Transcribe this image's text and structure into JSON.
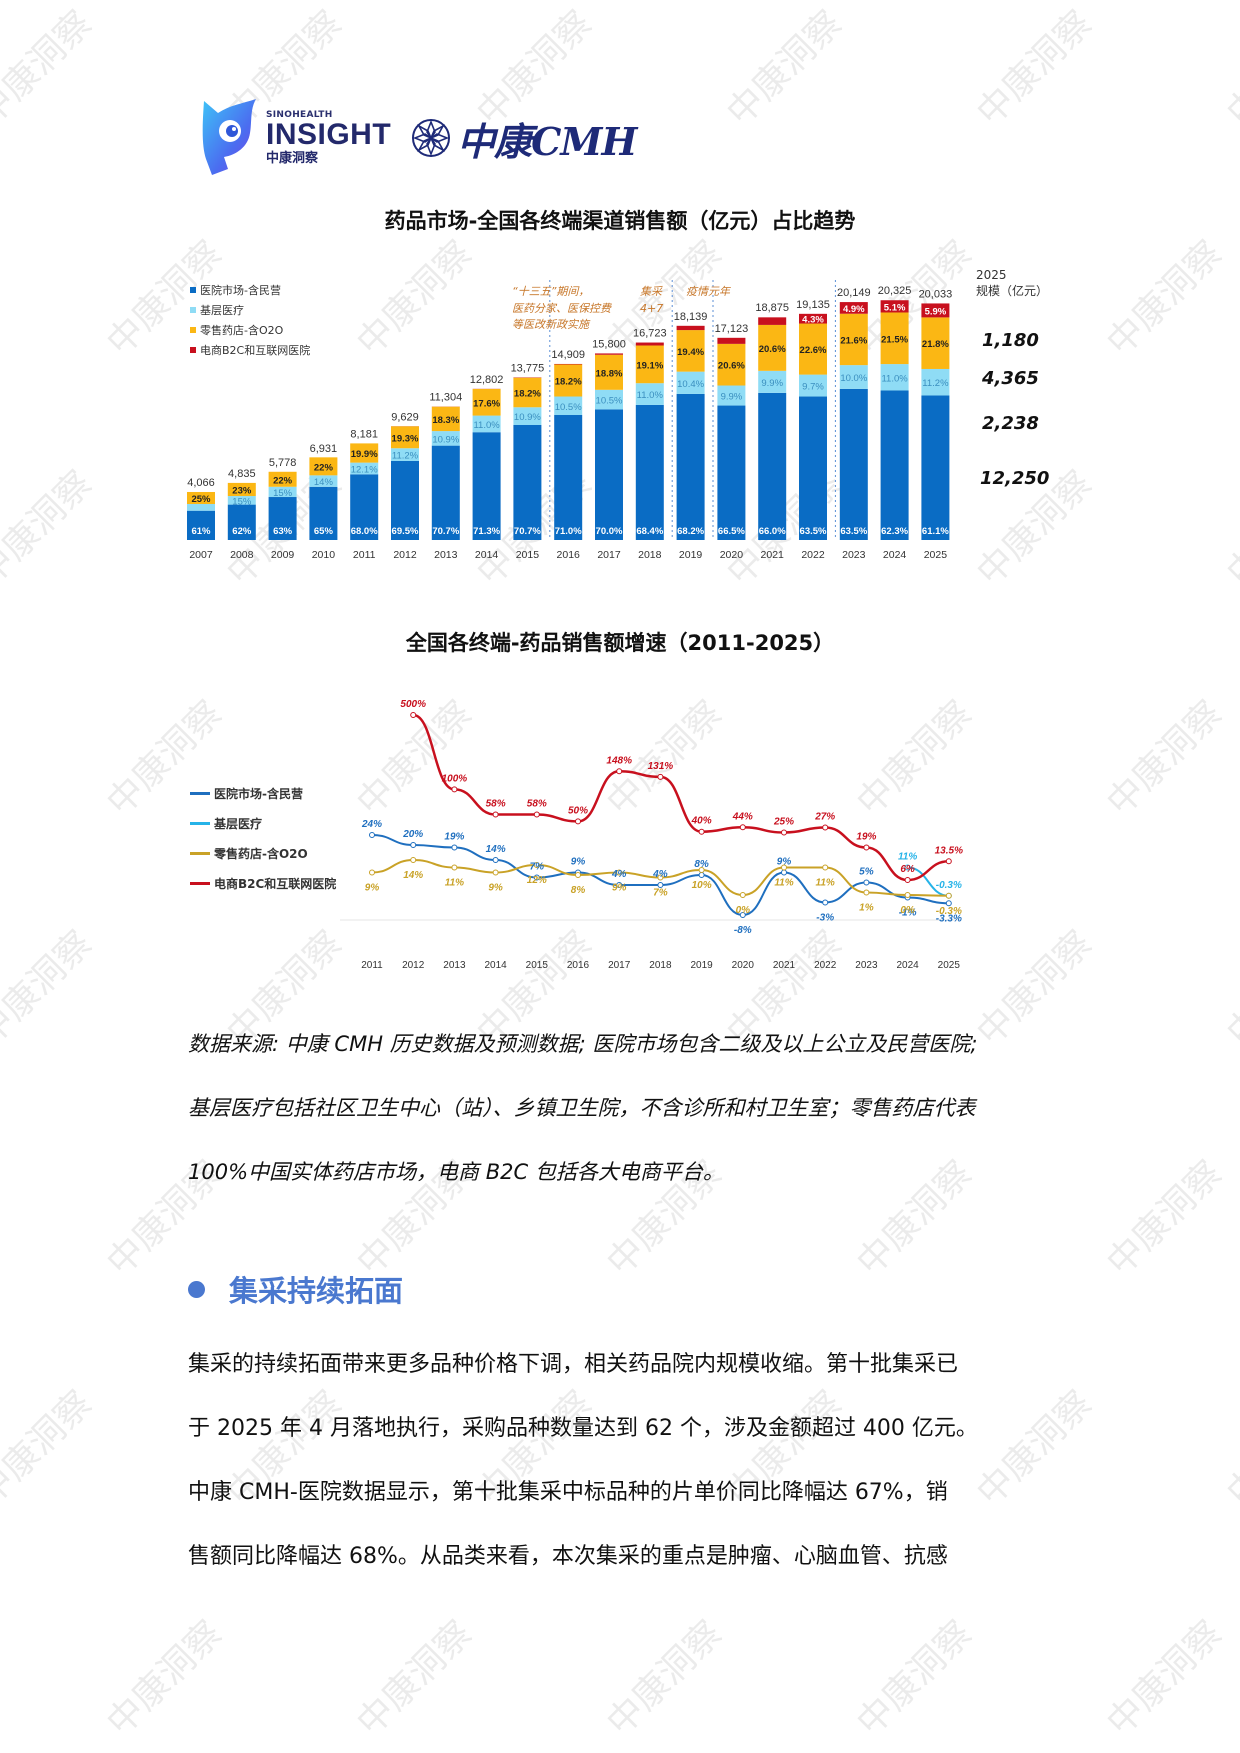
{
  "header": {
    "insight_logo": {
      "small": "SINOHEALTH",
      "big": "INSIGHT",
      "cn": "中康洞察"
    },
    "cmh_logo": {
      "text": "中康CMH"
    }
  },
  "watermark_text": "中康洞察",
  "chart1": {
    "title": "药品市场-全国各终端渠道销售额（亿元）占比趋势",
    "legend": [
      "医院市场-含民营",
      "基层医疗",
      "零售药店-含O2O",
      "电商B2C和互联网医院"
    ],
    "notes": [
      {
        "text": "“十三五”期间，\n医药分家、医保控费\n等医改新政实施"
      },
      {
        "text": "集采\n4+7"
      },
      {
        "text": "疫情元年"
      }
    ],
    "right_header": "2025\n规模（亿元）",
    "right_values": [
      "1,180",
      "4,365",
      "2,238",
      "12,250"
    ]
  },
  "chart2": {
    "title": "全国各终端-药品销售额增速（2011-2025）",
    "legend": [
      "医院市场-含民营",
      "基层医疗",
      "零售药店-含O2O",
      "电商B2C和互联网医院"
    ]
  },
  "chart_data": [
    {
      "type": "bar",
      "stacked": true,
      "title": "药品市场-全国各终端渠道销售额（亿元）占比趋势",
      "categories": [
        "2007",
        "2008",
        "2009",
        "2010",
        "2011",
        "2012",
        "2013",
        "2014",
        "2015",
        "2016",
        "2017",
        "2018",
        "2019",
        "2020",
        "2021",
        "2022",
        "2023",
        "2024",
        "2025"
      ],
      "totals": [
        4066,
        4835,
        5778,
        6931,
        8181,
        9629,
        11304,
        12802,
        13775,
        14909,
        15800,
        16723,
        18139,
        17123,
        18875,
        19135,
        20149,
        20325,
        20033
      ],
      "total_labels": [
        "4,066",
        "4,835",
        "5,778",
        "6,931",
        "8,181",
        "9,629",
        "11,304",
        "12,802",
        "13,775",
        "14,909",
        "15,800",
        "16,723",
        "18,139",
        "17,123",
        "18,875",
        "19,135",
        "20,149",
        "20,325",
        "20,033"
      ],
      "series": [
        {
          "name": "医院市场-含民营",
          "color": "#0a6cc4",
          "labels": [
            "61%",
            "62%",
            "63%",
            "65%",
            "68.0%",
            "69.5%",
            "70.7%",
            "71.3%",
            "70.7%",
            "71.0%",
            "70.0%",
            "68.4%",
            "68.2%",
            "66.5%",
            "66.0%",
            "63.5%",
            "63.5%",
            "62.3%",
            "61.1%"
          ],
          "values": [
            61,
            62,
            63,
            65,
            68.0,
            69.5,
            70.7,
            71.3,
            70.7,
            71.0,
            70.0,
            68.4,
            68.2,
            66.5,
            66.0,
            63.5,
            63.5,
            62.3,
            61.1
          ]
        },
        {
          "name": "基层医疗",
          "color": "#8fdcf5",
          "labels": [
            "14%",
            "15%",
            "15%",
            "14%",
            "12.1%",
            "11.2%",
            "10.9%",
            "11.0%",
            "10.9%",
            "10.5%",
            "10.5%",
            "11.0%",
            "10.4%",
            "9.9%",
            "9.9%",
            "9.7%",
            "10.0%",
            "11.0%",
            "11.2%"
          ],
          "values": [
            14,
            15,
            15,
            14,
            12.1,
            11.2,
            10.9,
            11.0,
            10.9,
            10.5,
            10.5,
            11.0,
            10.4,
            9.9,
            9.9,
            9.7,
            10.0,
            11.0,
            11.2
          ]
        },
        {
          "name": "零售药店-含O2O",
          "color": "#fbb714",
          "labels": [
            "25%",
            "23%",
            "22%",
            "22%",
            "19.9%",
            "19.3%",
            "18.3%",
            "17.6%",
            "18.2%",
            "18.2%",
            "18.8%",
            "19.1%",
            "19.4%",
            "20.6%",
            "20.6%",
            "22.6%",
            "21.6%",
            "21.5%",
            "21.8%"
          ],
          "values": [
            25,
            23,
            22,
            22,
            19.9,
            19.3,
            18.3,
            17.6,
            18.2,
            18.2,
            18.8,
            19.1,
            19.4,
            20.6,
            20.6,
            22.6,
            21.6,
            21.5,
            21.8
          ]
        },
        {
          "name": "电商B2C和互联网医院",
          "color": "#c8101e",
          "labels": [
            "",
            "",
            "",
            "",
            "0.0%",
            "0.1%",
            "0.1%",
            "0.1%",
            "0.2%",
            "0.3%",
            "0.7%",
            "1.5%",
            "2.0%",
            "3.0%",
            "3.4%",
            "4.3%",
            "4.9%",
            "5.1%",
            "5.9%"
          ],
          "values": [
            0,
            0,
            0,
            0,
            0.0,
            0.1,
            0.1,
            0.1,
            0.2,
            0.3,
            0.7,
            1.5,
            2.0,
            3.0,
            3.4,
            4.3,
            4.9,
            5.1,
            5.9
          ]
        }
      ],
      "annotations": [
        "“十三五”期间，医药分家、医保控费等医改新政实施",
        "集采 4+7",
        "疫情元年"
      ],
      "side_labels": {
        "header": "2025 规模（亿元）",
        "values": {
          "电商B2C和互联网医院": "1,180",
          "零售药店-含O2O": "4,365",
          "基层医疗": "2,238",
          "医院市场-含民营": "12,250"
        }
      },
      "legend_position": "top-left",
      "xlabel": "",
      "ylabel": ""
    },
    {
      "type": "line",
      "title": "全国各终端-药品销售额增速（2011-2025）",
      "x": [
        "2011",
        "2012",
        "2013",
        "2014",
        "2015",
        "2016",
        "2017",
        "2018",
        "2019",
        "2020",
        "2021",
        "2022",
        "2023",
        "2024",
        "2025"
      ],
      "series": [
        {
          "name": "医院市场-含民营",
          "color": "#1f6fbf",
          "values": [
            24,
            20,
            19,
            14,
            7,
            9,
            4,
            4,
            8,
            -8,
            9,
            -3,
            5,
            -1,
            -3.3
          ]
        },
        {
          "name": "基层医疗",
          "color": "#26b3e8",
          "values": [
            null,
            null,
            null,
            null,
            null,
            null,
            null,
            null,
            null,
            null,
            null,
            null,
            null,
            11,
            -0.3
          ]
        },
        {
          "name": "零售药店-含O2O",
          "color": "#c9a227",
          "values": [
            9,
            14,
            11,
            9,
            12,
            8,
            9,
            7,
            10,
            0,
            11,
            11,
            1,
            0,
            -0.3
          ]
        },
        {
          "name": "电商B2C和互联网医院",
          "color": "#c8101e",
          "values": [
            null,
            500,
            100,
            58,
            58,
            50,
            148,
            131,
            40,
            44,
            25,
            27,
            19,
            6,
            13.5
          ]
        }
      ],
      "point_labels": [
        {
          "series": "医院市场-含民营",
          "labels": [
            "24%",
            "20%",
            "19%",
            "14%",
            "7%",
            "9%",
            "4%",
            "4%",
            "8%",
            "-8%",
            "9%",
            "-3%",
            "5%",
            "-1%",
            "-3.3%"
          ]
        },
        {
          "series": "零售药店-含O2O",
          "labels": [
            "9%",
            "14%",
            "11%",
            "9%",
            "12%",
            "8%",
            "9%",
            "7%",
            "10%",
            "0%",
            "11%",
            "11%",
            "1%",
            "0%",
            "-0.3%"
          ]
        },
        {
          "series": "基层医疗",
          "labels": [
            "11%",
            "-0.3%"
          ]
        },
        {
          "series": "电商B2C和互联网医院",
          "labels": [
            "500%",
            "100%",
            "58%",
            "58%",
            "50%",
            "148%",
            "131%",
            "40%",
            "44%",
            "25%",
            "27%",
            "19%",
            "6%",
            "13.5%"
          ]
        }
      ],
      "legend_position": "left",
      "grid": false,
      "xlabel": "",
      "ylabel": ""
    }
  ],
  "source_note": {
    "lines": [
      "数据来源: 中康 CMH 历史数据及预测数据; 医院市场包含二级及以上公立及民营医院;",
      "基层医疗包括社区卫生中心（站）、乡镇卫生院，不含诊所和村卫生室；零售药店代表",
      "100%中国实体药店市场，电商 B2C 包括各大电商平台。"
    ]
  },
  "section": {
    "title": "集采持续拓面",
    "paragraph_lines": [
      "集采的持续拓面带来更多品种价格下调，相关药品院内规模收缩。第十批集采已",
      "于 2025 年 4 月落地执行，采购品种数量达到 62 个，涉及金额超过 400 亿元。",
      "中康 CMH-医院数据显示，第十批集采中标品种的片单价同比降幅达 67%，销",
      "售额同比降幅达 68%。从品类来看，本次集采的重点是肿瘤、心脑血管、抗感"
    ]
  }
}
